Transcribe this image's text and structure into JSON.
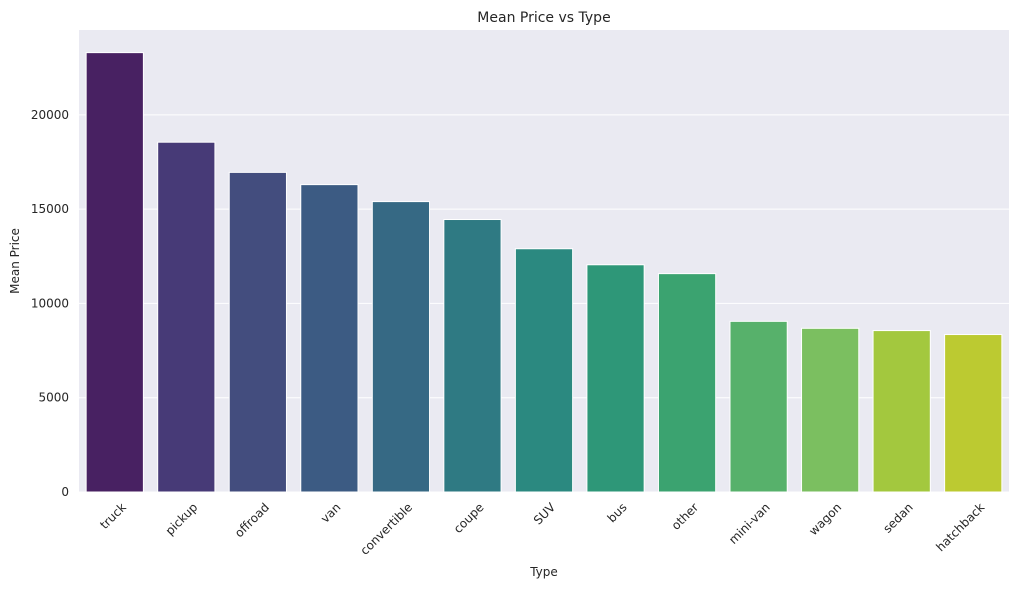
{
  "chart_data": {
    "type": "bar",
    "title": "Mean Price vs Type",
    "xlabel": "Type",
    "ylabel": "Mean Price",
    "categories": [
      "truck",
      "pickup",
      "offroad",
      "van",
      "convertible",
      "coupe",
      "SUV",
      "bus",
      "other",
      "mini-van",
      "wagon",
      "sedan",
      "hatchback"
    ],
    "values": [
      23300,
      18550,
      16950,
      16300,
      15400,
      14450,
      12900,
      12050,
      11580,
      9050,
      8680,
      8560,
      8350
    ],
    "ylim": [
      0,
      24500
    ],
    "yticks": [
      0,
      5000,
      10000,
      15000,
      20000
    ],
    "grid": true,
    "legend": "none",
    "background_color": "#eaeaf2",
    "colors": [
      "#482162",
      "#473a77",
      "#434d7e",
      "#3c5b83",
      "#366984",
      "#2f7a83",
      "#2b8980",
      "#2e9778",
      "#3ba370",
      "#57b16b",
      "#7bbf60",
      "#a3c83e",
      "#bcca31"
    ]
  }
}
